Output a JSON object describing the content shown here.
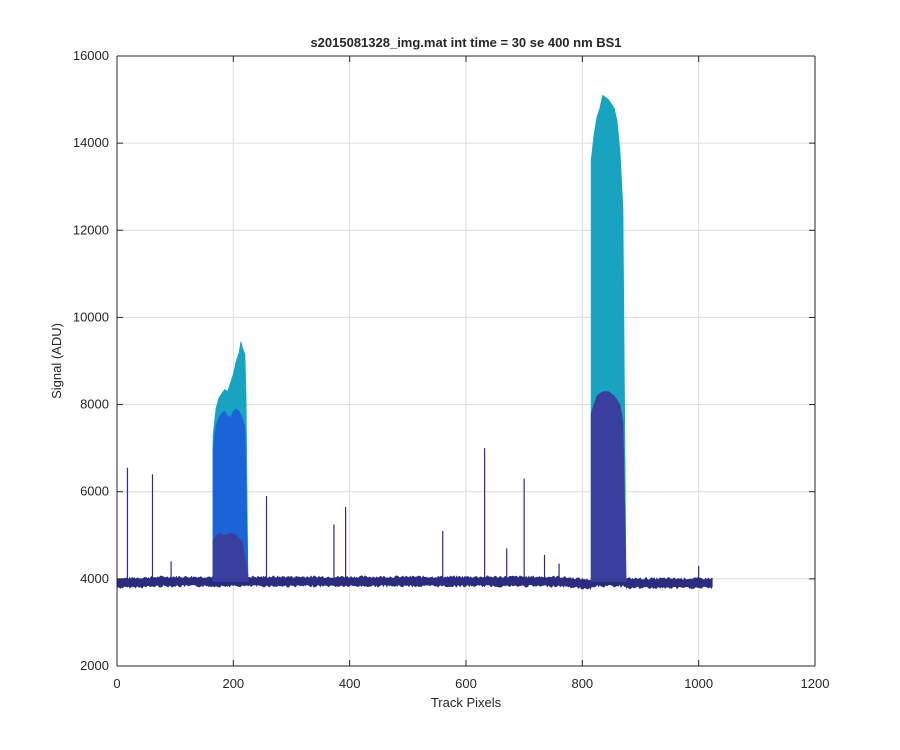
{
  "chart_data": {
    "type": "area",
    "title": "s2015081328_img.mat int time = 30 se  400 nm BS1",
    "xlabel": "Track Pixels",
    "ylabel": "Signal (ADU)",
    "xlim": [
      0,
      1200
    ],
    "ylim": [
      2000,
      16000
    ],
    "x_ticks": [
      0,
      200,
      400,
      600,
      800,
      1000,
      1200
    ],
    "y_ticks": [
      2000,
      4000,
      6000,
      8000,
      10000,
      12000,
      14000,
      16000
    ],
    "grid": true,
    "baseline_value": 3950,
    "x_range": [
      0,
      1024
    ],
    "series": [
      {
        "color": "#18a4c1",
        "points": [
          [
            165,
            7300
          ],
          [
            170,
            7900
          ],
          [
            175,
            8150
          ],
          [
            180,
            8250
          ],
          [
            185,
            8350
          ],
          [
            190,
            8300
          ],
          [
            195,
            8500
          ],
          [
            200,
            8700
          ],
          [
            205,
            9000
          ],
          [
            210,
            9200
          ],
          [
            213,
            9450
          ],
          [
            216,
            9300
          ],
          [
            220,
            9150
          ],
          [
            222,
            8200
          ],
          [
            225,
            4100
          ],
          [
            815,
            13600
          ],
          [
            820,
            14200
          ],
          [
            825,
            14600
          ],
          [
            830,
            14800
          ],
          [
            835,
            15100
          ],
          [
            840,
            15050
          ],
          [
            845,
            15000
          ],
          [
            850,
            14900
          ],
          [
            855,
            14800
          ],
          [
            860,
            14500
          ],
          [
            865,
            13800
          ],
          [
            870,
            12500
          ],
          [
            875,
            4100
          ]
        ]
      },
      {
        "color": "#1a64d8",
        "points": [
          [
            165,
            7000
          ],
          [
            170,
            7500
          ],
          [
            175,
            7700
          ],
          [
            180,
            7800
          ],
          [
            185,
            7850
          ],
          [
            190,
            7750
          ],
          [
            195,
            7700
          ],
          [
            200,
            7850
          ],
          [
            205,
            7900
          ],
          [
            210,
            7850
          ],
          [
            215,
            7700
          ],
          [
            220,
            7500
          ],
          [
            225,
            4100
          ]
        ]
      },
      {
        "color": "#3a3f9e",
        "points": [
          [
            165,
            4900
          ],
          [
            175,
            5050
          ],
          [
            185,
            5000
          ],
          [
            195,
            5050
          ],
          [
            205,
            5000
          ],
          [
            215,
            4850
          ],
          [
            225,
            4100
          ],
          [
            815,
            7800
          ],
          [
            825,
            8200
          ],
          [
            835,
            8300
          ],
          [
            845,
            8300
          ],
          [
            855,
            8200
          ],
          [
            865,
            8000
          ],
          [
            870,
            7600
          ],
          [
            875,
            4100
          ]
        ]
      },
      {
        "color": "#2b2c7e",
        "spikes": [
          [
            18,
            6550
          ],
          [
            61,
            6400
          ],
          [
            93,
            4400
          ],
          [
            257,
            5900
          ],
          [
            373,
            5250
          ],
          [
            393,
            5650
          ],
          [
            560,
            5100
          ],
          [
            632,
            7000
          ],
          [
            670,
            4700
          ],
          [
            700,
            6300
          ],
          [
            735,
            4550
          ],
          [
            760,
            4350
          ],
          [
            1000,
            4300
          ]
        ]
      }
    ]
  }
}
